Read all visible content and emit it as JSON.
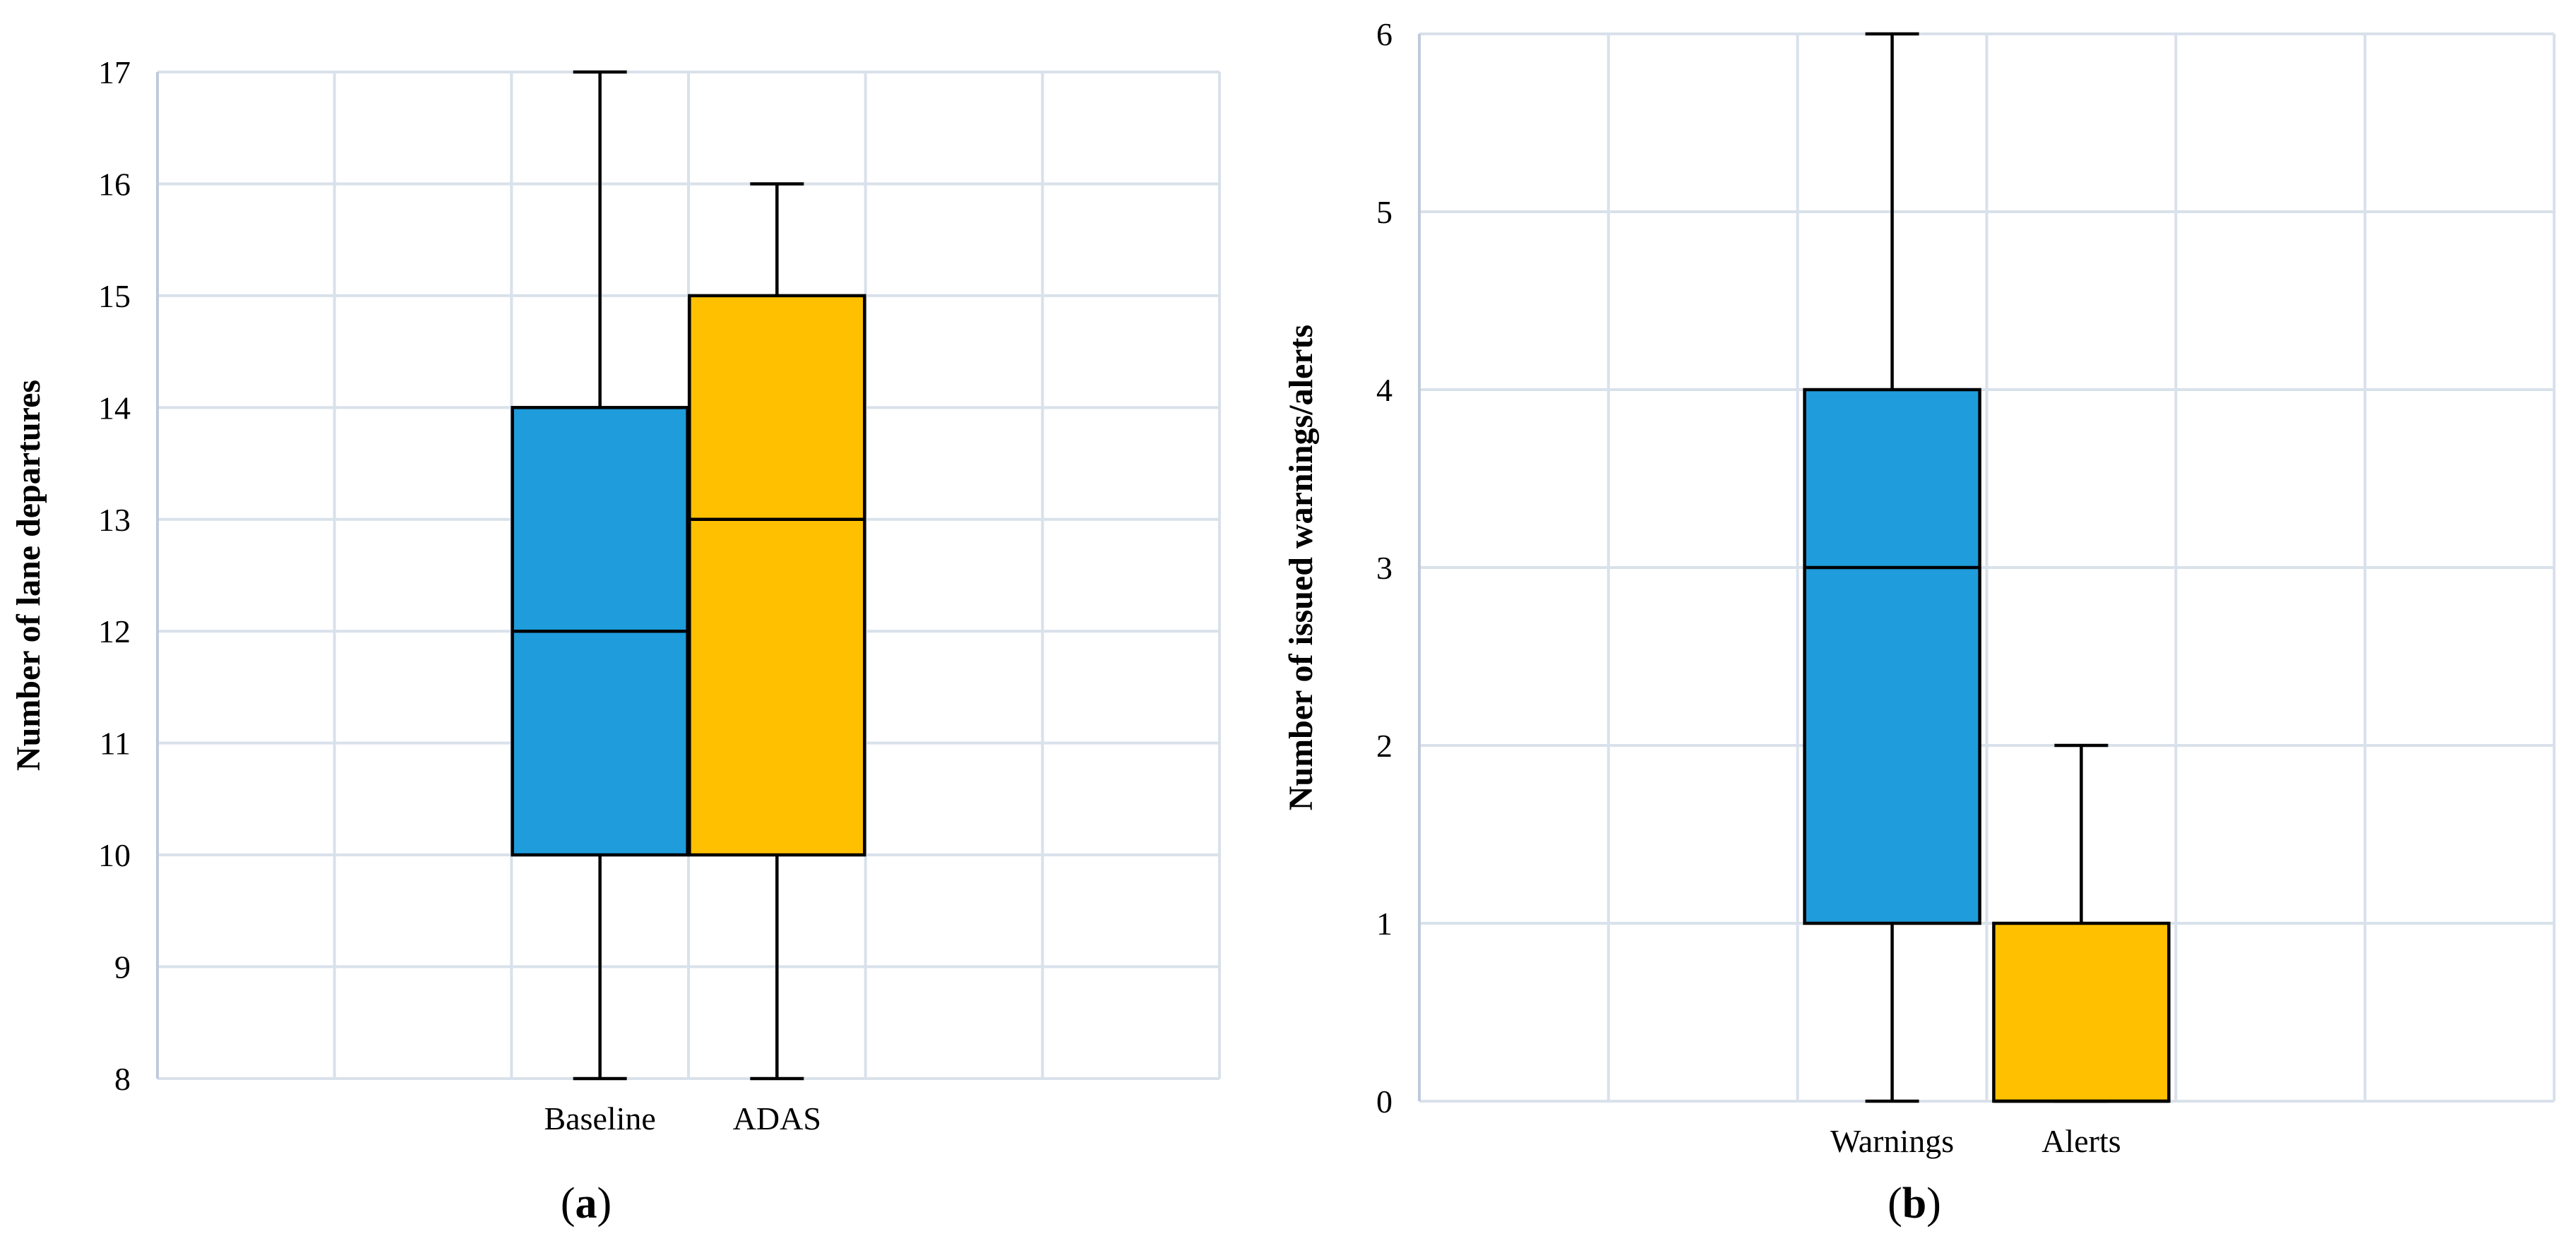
{
  "colors": {
    "blue": "#1F9CDB",
    "orange": "#FFC000",
    "grid": "#D9E1EB",
    "axis": "#BFCADB",
    "stroke": "#000000"
  },
  "chart_data": [
    {
      "type": "boxplot",
      "panel_label": "(a)",
      "panel_letter": "a",
      "ylabel": "Number of lane departures",
      "ylim": [
        8,
        17
      ],
      "yticks": [
        8,
        9,
        10,
        11,
        12,
        13,
        14,
        15,
        16,
        17
      ],
      "grid": true,
      "categories": [
        "Baseline",
        "ADAS"
      ],
      "boxes": [
        {
          "name": "Baseline",
          "min": 8,
          "q1": 10,
          "median": 12,
          "q3": 14,
          "max": 17,
          "color": "#1F9CDB"
        },
        {
          "name": "ADAS",
          "min": 8,
          "q1": 10,
          "median": 13,
          "q3": 15,
          "max": 16,
          "color": "#FFC000"
        }
      ]
    },
    {
      "type": "boxplot",
      "panel_label": "(b)",
      "panel_letter": "b",
      "ylabel": "Number of issued warnings/alerts",
      "ylim": [
        0,
        6
      ],
      "yticks": [
        0,
        1,
        2,
        3,
        4,
        5,
        6
      ],
      "grid": true,
      "categories": [
        "Warnings",
        "Alerts"
      ],
      "boxes": [
        {
          "name": "Warnings",
          "min": 0,
          "q1": 1,
          "median": 3,
          "q3": 4,
          "max": 6,
          "color": "#1F9CDB"
        },
        {
          "name": "Alerts",
          "min": 0,
          "q1": 0,
          "median": 0,
          "q3": 1,
          "max": 2,
          "color": "#FFC000"
        }
      ]
    }
  ]
}
